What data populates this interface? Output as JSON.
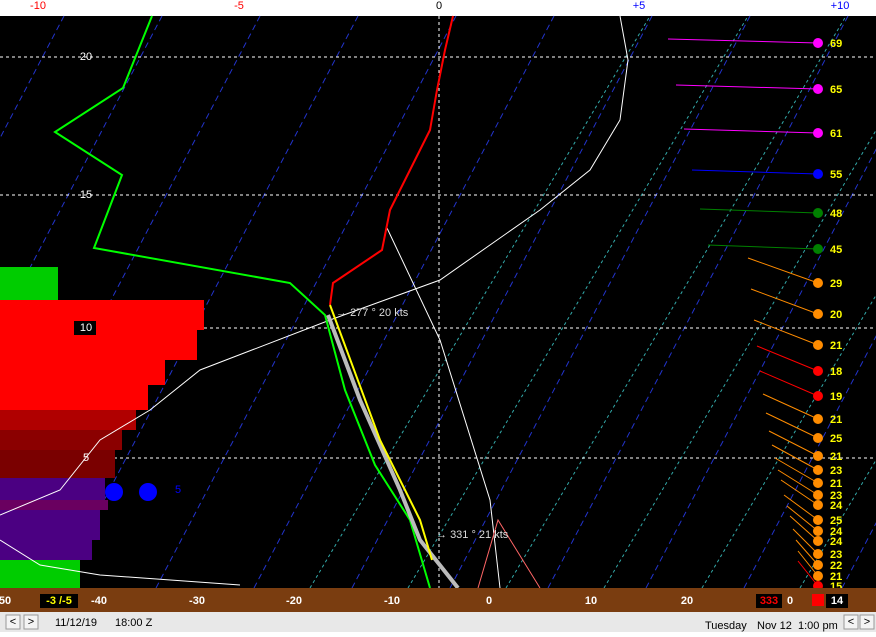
{
  "top_axis": {
    "ticks": [
      {
        "label": "-10",
        "color": "#ff0000"
      },
      {
        "label": "-5",
        "color": "#ff0000"
      },
      {
        "label": "0",
        "color": "#000000"
      },
      {
        "label": "+5",
        "color": "#0000ff"
      },
      {
        "label": "+10",
        "color": "#0000ff"
      }
    ]
  },
  "height_labels": [
    "20",
    "15",
    "10",
    "5"
  ],
  "annotations": {
    "upper_wind": "277 ° 20 kts",
    "lower_wind": "331 ° 21 kts",
    "marker": "5"
  },
  "winds": [
    {
      "label": "69",
      "color": "#ff00ff"
    },
    {
      "label": "65",
      "color": "#ff00ff"
    },
    {
      "label": "61",
      "color": "#ff00ff"
    },
    {
      "label": "55",
      "color": "#0000ff"
    },
    {
      "label": "48",
      "color": "#008000"
    },
    {
      "label": "45",
      "color": "#008000"
    },
    {
      "label": "29",
      "color": "#ff8c00"
    },
    {
      "label": "20",
      "color": "#ff8c00"
    },
    {
      "label": "21",
      "color": "#ff8c00"
    },
    {
      "label": "18",
      "color": "#ff0000"
    },
    {
      "label": "19",
      "color": "#ff0000"
    },
    {
      "label": "21",
      "color": "#ff8c00"
    },
    {
      "label": "25",
      "color": "#ff8c00"
    },
    {
      "label": "21",
      "color": "#ff8c00"
    },
    {
      "label": "23",
      "color": "#ff8c00"
    },
    {
      "label": "21",
      "color": "#ff8c00"
    },
    {
      "label": "23",
      "color": "#ff8c00"
    },
    {
      "label": "24",
      "color": "#ff8c00"
    },
    {
      "label": "25",
      "color": "#ff8c00"
    },
    {
      "label": "24",
      "color": "#ff8c00"
    },
    {
      "label": "24",
      "color": "#ff8c00"
    },
    {
      "label": "23",
      "color": "#ff8c00"
    },
    {
      "label": "22",
      "color": "#ff8c00"
    },
    {
      "label": "21",
      "color": "#ff8c00"
    },
    {
      "label": "15",
      "color": "#ff0000"
    }
  ],
  "bottom_axis": {
    "ticks": [
      "50",
      "-40",
      "-30",
      "-20",
      "-10",
      "0",
      "10",
      "20"
    ],
    "left_box": "-3 /-5",
    "right_box": "333",
    "right_zero": "0",
    "surface_wind": "14"
  },
  "status_bar": {
    "date": "11/12/19",
    "time_z": "18:00 Z",
    "weekday": "Tuesday",
    "day": "Nov 12",
    "local_time": "1:00 pm"
  }
}
